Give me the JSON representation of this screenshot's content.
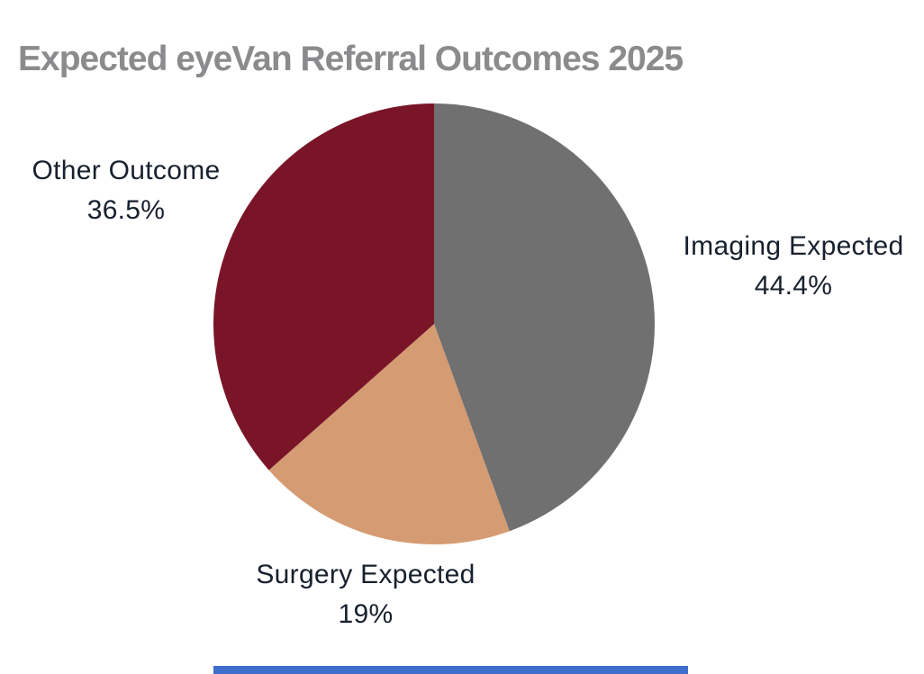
{
  "header": {
    "title": "Expected eyeVan Referral Outcomes 2025",
    "title_color": "#8b8b8e"
  },
  "chart_data": {
    "type": "pie",
    "title": "Expected eyeVan Referral Outcomes 2025",
    "start_angle_deg": 0,
    "direction": "clockwise",
    "legend_position": "labels-outside",
    "background": "#ffffff",
    "label_text_color": "#17202e",
    "slices": [
      {
        "label": "Imaging Expected",
        "value": 44.4,
        "display": "44.4%",
        "color": "#707070"
      },
      {
        "label": "Surgery Expected",
        "value": 19,
        "display": "19%",
        "color": "#d59b72"
      },
      {
        "label": "Other Outcome",
        "value": 36.5,
        "display": "36.5%",
        "color": "#7a1528"
      }
    ]
  },
  "scrollbar": {
    "color": "#3e6dcb"
  }
}
